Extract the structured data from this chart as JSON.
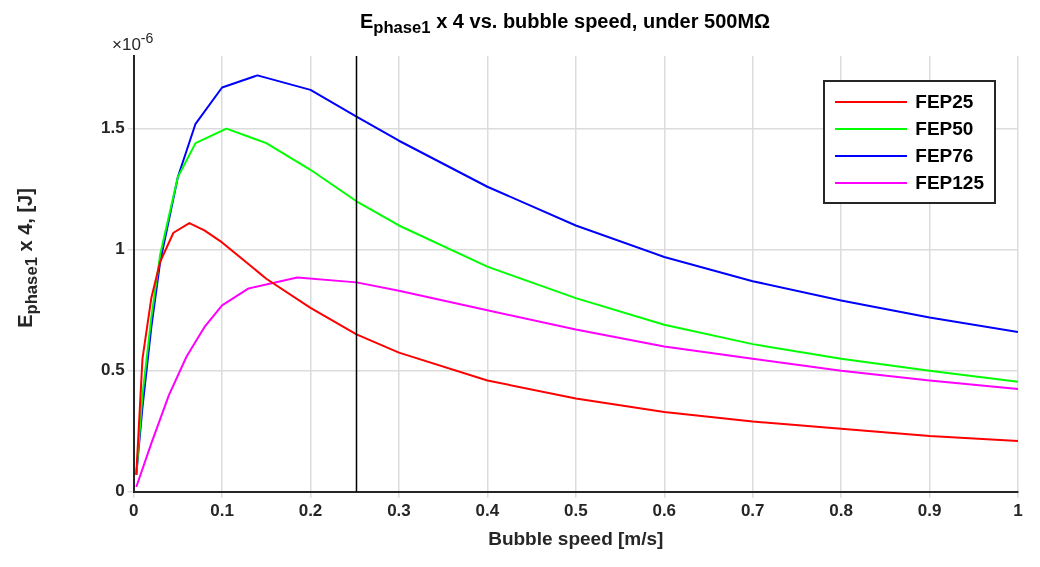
{
  "chart_data": {
    "type": "line",
    "title": "E$_{phase1}$ x 4  vs. bubble speed, under 500MΩ",
    "xlabel": "Bubble speed [m/s]",
    "ylabel": "E$_{phase1}$ x 4, [J]",
    "annotations": [
      "×10$^{-6}$"
    ],
    "xlim": [
      0,
      1
    ],
    "xticks": [
      0,
      0.1,
      0.2,
      0.3,
      0.4,
      0.5,
      0.6,
      0.7,
      0.8,
      0.9,
      1
    ],
    "ylim": [
      0,
      1.8
    ],
    "yticks": [
      0,
      0.5,
      1,
      1.5
    ],
    "grid": true,
    "legend": "top right",
    "marker": "none",
    "line_style": "solid",
    "ref_lines": [
      {
        "axis": "x",
        "value": 0.252,
        "color": "#000000"
      }
    ],
    "series": [
      {
        "name": "FEP25",
        "color": "#ff0000",
        "x": [
          0.003,
          0.01,
          0.02,
          0.03,
          0.045,
          0.063,
          0.08,
          0.1,
          0.15,
          0.2,
          0.252,
          0.3,
          0.4,
          0.5,
          0.6,
          0.7,
          0.8,
          0.9,
          1
        ],
        "values": [
          0.07,
          0.55,
          0.8,
          0.95,
          1.07,
          1.11,
          1.08,
          1.03,
          0.88,
          0.76,
          0.65,
          0.575,
          0.46,
          0.385,
          0.33,
          0.29,
          0.26,
          0.23,
          0.21
        ]
      },
      {
        "name": "FEP50",
        "color": "#00ff00",
        "x": [
          0.003,
          0.01,
          0.02,
          0.03,
          0.05,
          0.07,
          0.105,
          0.15,
          0.2,
          0.252,
          0.3,
          0.4,
          0.5,
          0.6,
          0.7,
          0.8,
          0.9,
          1
        ],
        "values": [
          0.07,
          0.4,
          0.72,
          0.98,
          1.3,
          1.44,
          1.5,
          1.44,
          1.33,
          1.2,
          1.1,
          0.93,
          0.8,
          0.69,
          0.61,
          0.55,
          0.5,
          0.455
        ]
      },
      {
        "name": "FEP76",
        "color": "#0000ff",
        "x": [
          0.003,
          0.01,
          0.02,
          0.03,
          0.05,
          0.07,
          0.1,
          0.14,
          0.2,
          0.252,
          0.3,
          0.4,
          0.5,
          0.6,
          0.7,
          0.8,
          0.9,
          1
        ],
        "values": [
          0.07,
          0.35,
          0.68,
          0.95,
          1.3,
          1.52,
          1.67,
          1.72,
          1.66,
          1.55,
          1.45,
          1.26,
          1.1,
          0.97,
          0.87,
          0.79,
          0.72,
          0.66
        ]
      },
      {
        "name": "FEP125",
        "color": "#ff00ff",
        "x": [
          0.003,
          0.02,
          0.04,
          0.06,
          0.08,
          0.1,
          0.13,
          0.185,
          0.252,
          0.3,
          0.4,
          0.5,
          0.6,
          0.7,
          0.8,
          0.9,
          1
        ],
        "values": [
          0.02,
          0.2,
          0.4,
          0.56,
          0.68,
          0.77,
          0.84,
          0.885,
          0.865,
          0.83,
          0.75,
          0.67,
          0.6,
          0.55,
          0.5,
          0.46,
          0.425
        ]
      }
    ]
  }
}
